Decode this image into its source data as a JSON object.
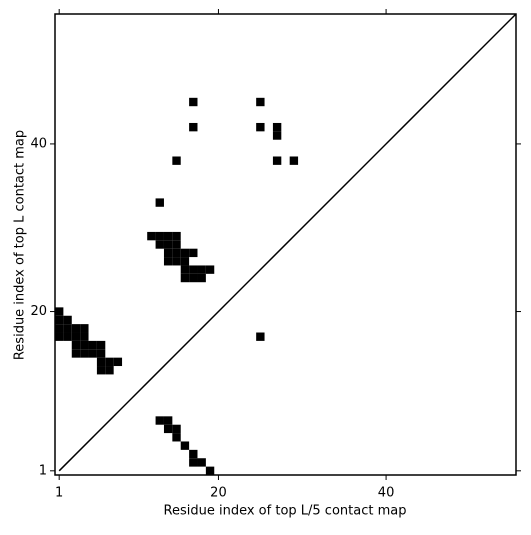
{
  "chart_data": {
    "type": "scatter",
    "marker": "square",
    "diagonal": true,
    "xlabel": "Residue index of top L/5 contact map",
    "ylabel": "Residue index of top L contact map",
    "xlim": [
      0.5,
      55.5
    ],
    "ylim": [
      0.5,
      55.5
    ],
    "xticks": [
      1,
      20,
      40
    ],
    "yticks": [
      1,
      20,
      40
    ],
    "series": [
      {
        "color": "#000000",
        "x": [
          17,
          25,
          17,
          25,
          27,
          27,
          15,
          27,
          29,
          13,
          12,
          13,
          14,
          15,
          13,
          14,
          15,
          14,
          15,
          16,
          17,
          14,
          15,
          16,
          16,
          17,
          18,
          19,
          16,
          17,
          18,
          25,
          1,
          1,
          2,
          1,
          2,
          3,
          4,
          1,
          2,
          3,
          4,
          3,
          4,
          5,
          6,
          3,
          4,
          5,
          6,
          6,
          7,
          8,
          6,
          7,
          13,
          14,
          14,
          15,
          15,
          16,
          17,
          17,
          18,
          19
        ],
        "values": [
          45,
          45,
          42,
          42,
          42,
          41,
          38,
          38,
          38,
          33,
          29,
          29,
          29,
          29,
          28,
          28,
          28,
          27,
          27,
          27,
          27,
          26,
          26,
          26,
          25,
          25,
          25,
          25,
          24,
          24,
          24,
          17,
          20,
          19,
          19,
          18,
          18,
          18,
          18,
          17,
          17,
          17,
          17,
          16,
          16,
          16,
          16,
          15,
          15,
          15,
          15,
          14,
          14,
          14,
          13,
          13,
          7,
          7,
          6,
          6,
          5,
          4,
          3,
          2,
          2,
          1
        ]
      }
    ]
  }
}
